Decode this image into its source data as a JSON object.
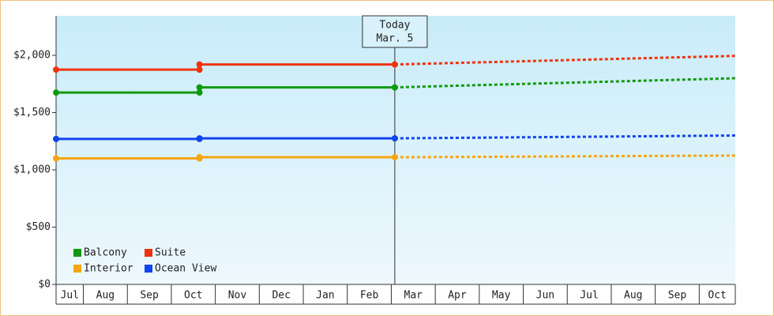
{
  "chart_data": {
    "type": "line",
    "xlim": [
      0.38,
      15.82
    ],
    "ylim": [
      0,
      2345
    ],
    "xticks": [
      {
        "value": 0,
        "label": "Jul"
      },
      {
        "value": 1,
        "label": "Aug"
      },
      {
        "value": 2,
        "label": "Sep"
      },
      {
        "value": 3,
        "label": "Oct"
      },
      {
        "value": 4,
        "label": "Nov"
      },
      {
        "value": 5,
        "label": "Dec"
      },
      {
        "value": 6,
        "label": "Jan"
      },
      {
        "value": 7,
        "label": "Feb"
      },
      {
        "value": 8,
        "label": "Mar"
      },
      {
        "value": 9,
        "label": "Apr"
      },
      {
        "value": 10,
        "label": "May"
      },
      {
        "value": 11,
        "label": "Jun"
      },
      {
        "value": 12,
        "label": "Jul"
      },
      {
        "value": 13,
        "label": "Aug"
      },
      {
        "value": 14,
        "label": "Sep"
      },
      {
        "value": 15,
        "label": "Oct"
      }
    ],
    "yticks": [
      {
        "value": 0,
        "label": "$0"
      },
      {
        "value": 500,
        "label": "$500"
      },
      {
        "value": 1000,
        "label": "$1,000"
      },
      {
        "value": 1500,
        "label": "$1,500"
      },
      {
        "value": 2000,
        "label": "$2,000"
      }
    ],
    "today": {
      "x": 8.08,
      "label": [
        "Today",
        "Mar. 5"
      ]
    },
    "legend": "bottom-left",
    "series": [
      {
        "name": "Balcony",
        "color": "#119911",
        "x": [
          0.38,
          3.64,
          3.64,
          8.08
        ],
        "values": [
          1675,
          1675,
          1720,
          1720
        ],
        "forecast_x": [
          8.08,
          15.82
        ],
        "forecast_values": [
          1720,
          1800
        ]
      },
      {
        "name": "Suite",
        "color": "#ee3311",
        "x": [
          0.38,
          3.64,
          3.64,
          8.08
        ],
        "values": [
          1875,
          1875,
          1920,
          1920
        ],
        "forecast_x": [
          8.08,
          15.82
        ],
        "forecast_values": [
          1920,
          1995
        ]
      },
      {
        "name": "Interior",
        "color": "#f5a511",
        "x": [
          0.38,
          3.64,
          3.64,
          8.08
        ],
        "values": [
          1100,
          1100,
          1110,
          1110
        ],
        "forecast_x": [
          8.08,
          15.82
        ],
        "forecast_values": [
          1110,
          1125
        ]
      },
      {
        "name": "Ocean View",
        "color": "#1144ee",
        "x": [
          0.38,
          3.64,
          3.64,
          8.08
        ],
        "values": [
          1270,
          1270,
          1275,
          1275
        ],
        "forecast_x": [
          8.08,
          15.82
        ],
        "forecast_values": [
          1275,
          1300
        ]
      }
    ]
  }
}
